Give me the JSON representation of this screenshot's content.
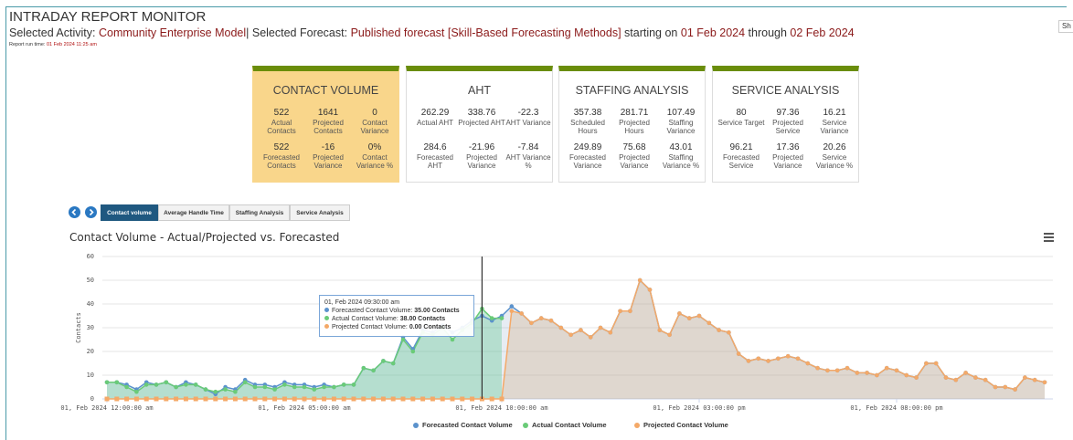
{
  "header": {
    "title": "INTRADAY REPORT MONITOR",
    "selection": [
      {
        "text": "Selected Activity: ",
        "highlight": false
      },
      {
        "text": "Community Enterprise Model",
        "highlight": true
      },
      {
        "text": "| Selected Forecast: ",
        "highlight": false
      },
      {
        "text": "Published forecast [Skill-Based Forecasting Methods]",
        "highlight": true
      },
      {
        "text": " starting on ",
        "highlight": false
      },
      {
        "text": "01 Feb 2024",
        "highlight": true
      },
      {
        "text": " through ",
        "highlight": false
      },
      {
        "text": "02 Feb 2024",
        "highlight": true
      }
    ],
    "run_time_label": "Report run time: ",
    "run_time": "01 Feb 2024 11:25 am"
  },
  "top_button": "Sh",
  "cards": [
    {
      "title": "CONTACT VOLUME",
      "metrics": [
        {
          "value": 522,
          "label": "Actual Contacts"
        },
        {
          "value": 1641,
          "label": "Projected Contacts"
        },
        {
          "value": 0,
          "label": "Contact Variance"
        },
        {
          "value": 522,
          "label": "Forecasted Contacts"
        },
        {
          "value": -16,
          "label": "Projected Variance"
        },
        {
          "value": "0%",
          "label": "Contact Variance %"
        }
      ]
    },
    {
      "title": "AHT",
      "metrics": [
        {
          "value": 262.29,
          "label": "Actual AHT"
        },
        {
          "value": 338.76,
          "label": "Projected AHT"
        },
        {
          "value": -22.3,
          "label": "AHT Variance"
        },
        {
          "value": 284.6,
          "label": "Forecasted AHT"
        },
        {
          "value": -21.96,
          "label": "Projected Variance"
        },
        {
          "value": -7.84,
          "label": "AHT Variance %"
        }
      ]
    },
    {
      "title": "STAFFING ANALYSIS",
      "metrics": [
        {
          "value": 357.38,
          "label": "Scheduled Hours"
        },
        {
          "value": 281.71,
          "label": "Projected Hours"
        },
        {
          "value": 107.49,
          "label": "Staffing Variance"
        },
        {
          "value": 249.89,
          "label": "Forecasted Variance"
        },
        {
          "value": 75.68,
          "label": "Projected Variance"
        },
        {
          "value": 43.01,
          "label": "Staffing Variance %"
        }
      ]
    },
    {
      "title": "SERVICE ANALYSIS",
      "metrics": [
        {
          "value": 80,
          "label": "Service Target"
        },
        {
          "value": 97.36,
          "label": "Projected Service"
        },
        {
          "value": 16.21,
          "label": "Service Variance"
        },
        {
          "value": 96.21,
          "label": "Forecasted Service"
        },
        {
          "value": 17.36,
          "label": "Projected Variance"
        },
        {
          "value": 20.26,
          "label": "Service Variance %"
        }
      ]
    }
  ],
  "tabs": [
    "Contact volume",
    "Average Handle Time",
    "Staffing Analysis",
    "Service Analysis"
  ],
  "chart_data": {
    "type": "line",
    "title": "Contact Volume - Actual/Projected vs. Forecasted",
    "ylabel": "Contacts",
    "categories": [
      "01, Feb 2024 12:00:00 am",
      null,
      null,
      null,
      null,
      null,
      null,
      null,
      null,
      null,
      null,
      null,
      null,
      null,
      null,
      null,
      null,
      null,
      null,
      null,
      "01, Feb 2024 05:00:00 am",
      null,
      null,
      null,
      null,
      null,
      null,
      null,
      null,
      null,
      null,
      null,
      null,
      null,
      null,
      null,
      null,
      null,
      null,
      null,
      "01, Feb 2024 10:00:00 am",
      null,
      null,
      null,
      null,
      null,
      null,
      null,
      null,
      null,
      null,
      null,
      null,
      null,
      null,
      null,
      null,
      null,
      null,
      null,
      "01, Feb 2024 03:00:00 pm",
      null,
      null,
      null,
      null,
      null,
      null,
      null,
      null,
      null,
      null,
      null,
      null,
      null,
      null,
      null,
      null,
      null,
      null,
      null,
      "01, Feb 2024 08:00:00 pm",
      null,
      null,
      null,
      null,
      null,
      null,
      null,
      null,
      null,
      null,
      null,
      null,
      null,
      null,
      null
    ],
    "series": [
      {
        "name": "Forecasted Contact Volume",
        "color": "#5b92cc",
        "values": [
          7,
          7,
          6,
          4,
          7,
          6,
          7,
          5,
          7,
          6,
          4,
          2,
          5,
          4,
          8,
          6,
          6,
          5,
          7,
          6,
          6,
          5,
          6,
          5,
          6,
          6,
          13,
          12,
          16,
          15,
          26,
          21,
          29,
          28,
          31,
          28,
          30,
          33,
          35,
          33,
          35,
          39,
          36,
          32,
          34,
          33,
          30,
          27,
          29,
          26,
          30,
          28,
          37,
          37,
          50,
          46,
          29,
          27,
          36,
          34,
          35,
          32,
          29,
          28,
          19,
          16,
          17,
          16,
          17,
          18,
          17,
          15,
          13,
          12,
          12,
          13,
          11,
          11,
          10,
          13,
          12,
          10,
          9,
          15,
          15,
          9,
          8,
          11,
          9,
          8,
          5,
          5,
          4,
          9,
          8,
          7
        ]
      },
      {
        "name": "Actual Contact Volume",
        "color": "#6acb78",
        "values": [
          7,
          7,
          5,
          3,
          6,
          6,
          7,
          5,
          6,
          6,
          4,
          3,
          4,
          3,
          7,
          5,
          5,
          4,
          6,
          5,
          5,
          4,
          5,
          5,
          6,
          6,
          13,
          12,
          16,
          15,
          25,
          20,
          28,
          27,
          30,
          25,
          29,
          32,
          38,
          34,
          34,
          null,
          null,
          null,
          null,
          null,
          null,
          null,
          null,
          null,
          null,
          null,
          null,
          null,
          null,
          null,
          null,
          null,
          null,
          null,
          null,
          null,
          null,
          null,
          null,
          null,
          null,
          null,
          null,
          null,
          null,
          null,
          null,
          null,
          null,
          null,
          null,
          null,
          null,
          null,
          null,
          null,
          null,
          null,
          null,
          null,
          null,
          null,
          null,
          null,
          null,
          null,
          null,
          null,
          null,
          null
        ]
      },
      {
        "name": "Projected Contact Volume",
        "color": "#f4a968",
        "values": [
          0,
          0,
          0,
          0,
          0,
          0,
          0,
          0,
          0,
          0,
          0,
          0,
          0,
          0,
          0,
          0,
          0,
          0,
          0,
          0,
          0,
          0,
          0,
          0,
          0,
          0,
          0,
          0,
          0,
          0,
          0,
          0,
          0,
          0,
          0,
          0,
          0,
          0,
          0,
          0,
          0,
          37,
          36,
          32,
          34,
          33,
          30,
          27,
          29,
          26,
          30,
          28,
          37,
          37,
          50,
          46,
          29,
          27,
          36,
          34,
          35,
          32,
          29,
          28,
          19,
          16,
          17,
          16,
          17,
          18,
          17,
          15,
          13,
          12,
          12,
          13,
          11,
          11,
          10,
          13,
          12,
          10,
          9,
          15,
          15,
          9,
          8,
          11,
          9,
          8,
          5,
          5,
          4,
          9,
          8,
          7
        ]
      }
    ],
    "ylim": [
      0,
      60
    ],
    "yticks": [
      0,
      10,
      20,
      30,
      40,
      50,
      60
    ],
    "grid": true,
    "legend": "bottom",
    "tooltip": {
      "title": "01, Feb 2024 09:30:00 am",
      "rows": [
        {
          "label": "Forecasted Contact Volume: ",
          "value": "35.00 Contacts"
        },
        {
          "label": "Actual Contact Volume: ",
          "value": "38.00 Contacts"
        },
        {
          "label": "Projected Contact Volume: ",
          "value": "0.00 Contacts"
        }
      ]
    }
  }
}
